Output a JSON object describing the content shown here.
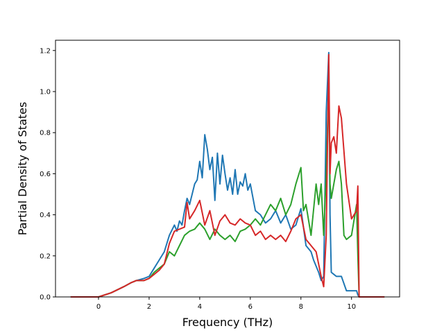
{
  "chart_data": {
    "type": "line",
    "title": "",
    "xlabel": "Frequency (THz)",
    "ylabel": "Partial Density of States",
    "xlim": [
      -1.7,
      11.9
    ],
    "ylim": [
      0,
      1.25
    ],
    "xticks": [
      0,
      2,
      4,
      6,
      8,
      10
    ],
    "yticks": [
      0.0,
      0.2,
      0.4,
      0.6,
      0.8,
      1.0,
      1.2
    ],
    "xtick_labels": [
      "0",
      "2",
      "4",
      "6",
      "8",
      "10"
    ],
    "ytick_labels": [
      "0.0",
      "0.2",
      "0.4",
      "0.6",
      "0.8",
      "1.0",
      "1.2"
    ],
    "grid": false,
    "legend": "none",
    "series": [
      {
        "color": "#1f77b4",
        "x": [
          -1.1,
          0.0,
          0.5,
          1.0,
          1.3,
          1.5,
          1.8,
          2.0,
          2.2,
          2.4,
          2.6,
          2.8,
          3.0,
          3.1,
          3.2,
          3.3,
          3.4,
          3.5,
          3.6,
          3.7,
          3.8,
          3.9,
          4.0,
          4.1,
          4.2,
          4.3,
          4.4,
          4.5,
          4.6,
          4.7,
          4.8,
          4.9,
          5.0,
          5.1,
          5.2,
          5.3,
          5.4,
          5.5,
          5.6,
          5.7,
          5.8,
          5.9,
          6.0,
          6.2,
          6.4,
          6.6,
          6.8,
          7.0,
          7.2,
          7.4,
          7.6,
          7.8,
          8.0,
          8.2,
          8.4,
          8.5,
          8.6,
          8.7,
          8.8,
          8.9,
          9.0,
          9.1,
          9.15,
          9.2,
          9.3,
          9.4,
          9.6,
          9.8,
          10.0,
          10.2,
          10.25,
          10.3,
          10.5,
          11.3
        ],
        "y": [
          0.0,
          0.0,
          0.02,
          0.05,
          0.07,
          0.08,
          0.09,
          0.1,
          0.14,
          0.18,
          0.22,
          0.3,
          0.35,
          0.32,
          0.37,
          0.35,
          0.42,
          0.48,
          0.45,
          0.5,
          0.55,
          0.57,
          0.66,
          0.58,
          0.79,
          0.72,
          0.62,
          0.68,
          0.47,
          0.7,
          0.55,
          0.69,
          0.6,
          0.52,
          0.58,
          0.5,
          0.62,
          0.5,
          0.56,
          0.54,
          0.6,
          0.52,
          0.55,
          0.42,
          0.4,
          0.36,
          0.38,
          0.42,
          0.36,
          0.4,
          0.33,
          0.35,
          0.43,
          0.25,
          0.22,
          0.18,
          0.15,
          0.12,
          0.08,
          0.1,
          0.9,
          1.19,
          0.4,
          0.12,
          0.11,
          0.1,
          0.1,
          0.03,
          0.03,
          0.03,
          0.01,
          0.0,
          0.0,
          0.0
        ]
      },
      {
        "color": "#2ca02c",
        "x": [
          -1.1,
          0.0,
          0.5,
          1.0,
          1.3,
          1.5,
          1.8,
          2.0,
          2.2,
          2.4,
          2.6,
          2.8,
          3.0,
          3.2,
          3.4,
          3.6,
          3.8,
          4.0,
          4.2,
          4.4,
          4.6,
          4.8,
          5.0,
          5.2,
          5.4,
          5.6,
          5.8,
          6.0,
          6.2,
          6.4,
          6.6,
          6.8,
          7.0,
          7.2,
          7.4,
          7.6,
          7.8,
          8.0,
          8.1,
          8.2,
          8.4,
          8.6,
          8.7,
          8.8,
          8.9,
          9.0,
          9.1,
          9.15,
          9.2,
          9.4,
          9.5,
          9.6,
          9.7,
          9.8,
          10.0,
          10.2,
          10.25,
          10.3,
          10.5,
          11.3
        ],
        "y": [
          0.0,
          0.0,
          0.02,
          0.05,
          0.07,
          0.08,
          0.08,
          0.09,
          0.12,
          0.14,
          0.16,
          0.22,
          0.2,
          0.25,
          0.3,
          0.32,
          0.33,
          0.36,
          0.33,
          0.28,
          0.33,
          0.3,
          0.28,
          0.3,
          0.27,
          0.32,
          0.33,
          0.35,
          0.38,
          0.35,
          0.4,
          0.45,
          0.42,
          0.48,
          0.4,
          0.45,
          0.55,
          0.63,
          0.42,
          0.45,
          0.3,
          0.55,
          0.45,
          0.55,
          0.3,
          0.6,
          1.05,
          0.55,
          0.48,
          0.62,
          0.66,
          0.55,
          0.3,
          0.28,
          0.3,
          0.45,
          0.2,
          0.0,
          0.0,
          0.0
        ]
      },
      {
        "color": "#d62728",
        "x": [
          -1.1,
          0.0,
          0.5,
          1.0,
          1.3,
          1.5,
          1.8,
          2.0,
          2.2,
          2.4,
          2.6,
          2.8,
          3.0,
          3.2,
          3.4,
          3.5,
          3.6,
          3.8,
          4.0,
          4.2,
          4.4,
          4.6,
          4.8,
          5.0,
          5.2,
          5.4,
          5.6,
          5.8,
          6.0,
          6.2,
          6.4,
          6.6,
          6.8,
          7.0,
          7.2,
          7.4,
          7.6,
          7.8,
          8.0,
          8.2,
          8.4,
          8.6,
          8.8,
          8.9,
          9.0,
          9.1,
          9.15,
          9.2,
          9.3,
          9.4,
          9.5,
          9.6,
          9.8,
          10.0,
          10.2,
          10.25,
          10.3,
          10.5,
          11.3
        ],
        "y": [
          0.0,
          0.0,
          0.02,
          0.05,
          0.07,
          0.08,
          0.08,
          0.09,
          0.11,
          0.13,
          0.16,
          0.26,
          0.32,
          0.33,
          0.34,
          0.46,
          0.38,
          0.42,
          0.47,
          0.35,
          0.42,
          0.3,
          0.37,
          0.4,
          0.36,
          0.35,
          0.38,
          0.36,
          0.35,
          0.3,
          0.32,
          0.28,
          0.3,
          0.28,
          0.3,
          0.27,
          0.32,
          0.38,
          0.4,
          0.28,
          0.25,
          0.22,
          0.1,
          0.05,
          0.3,
          1.18,
          0.6,
          0.75,
          0.78,
          0.7,
          0.93,
          0.87,
          0.55,
          0.38,
          0.42,
          0.54,
          0.0,
          0.0,
          0.0
        ]
      }
    ]
  }
}
